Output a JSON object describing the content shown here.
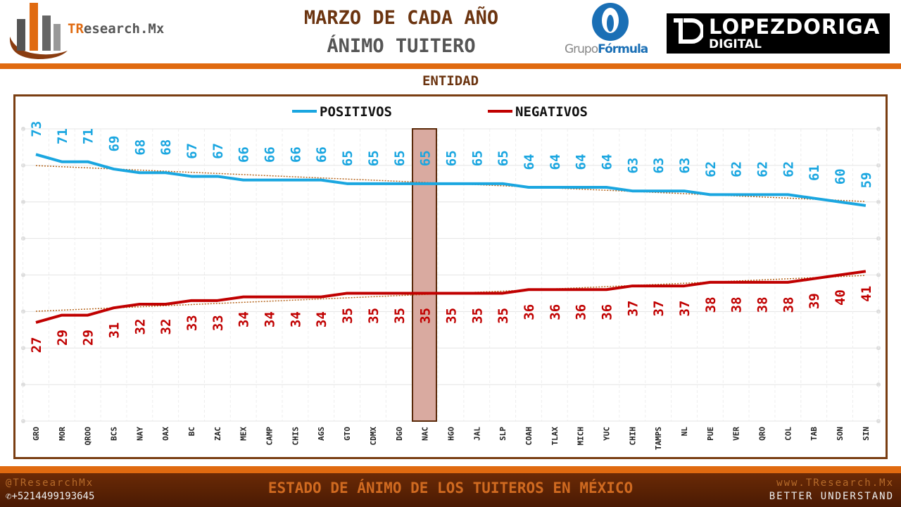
{
  "header": {
    "title": "MARZO DE CADA AÑO",
    "subtitle": "ÁNIMO TUITERO",
    "logo_tresearch_prefix": "TR",
    "logo_tresearch_rest": "esearch.Mx",
    "logo_grupo_light": "Grupo",
    "logo_grupo_bold": "Fórmula",
    "logo_lopezdoriga_main": "LOPEZDORIGA",
    "logo_lopezdoriga_sub": "DIGITAL"
  },
  "section_label": "ENTIDAD",
  "chart_data": {
    "type": "line",
    "title": "",
    "xlabel": "",
    "ylabel": "",
    "ylim": [
      0,
      80
    ],
    "grid": true,
    "legend_position": "top",
    "highlight_category": "NAC",
    "trendlines": "linear, dotted",
    "categories": [
      "GRO",
      "MOR",
      "QROO",
      "BCS",
      "NAY",
      "OAX",
      "BC",
      "ZAC",
      "MEX",
      "CAMP",
      "CHIS",
      "AGS",
      "GTO",
      "CDMX",
      "DGO",
      "NAC",
      "HGO",
      "JAL",
      "SLP",
      "COAH",
      "TLAX",
      "MICH",
      "YUC",
      "CHIH",
      "TAMPS",
      "NL",
      "PUE",
      "VER",
      "QRO",
      "COL",
      "TAB",
      "SON",
      "SIN"
    ],
    "series": [
      {
        "name": "POSITIVOS",
        "color": "#1aa6e0",
        "values": [
          73,
          71,
          71,
          69,
          68,
          68,
          67,
          67,
          66,
          66,
          66,
          66,
          65,
          65,
          65,
          65,
          65,
          65,
          65,
          64,
          64,
          64,
          64,
          63,
          63,
          63,
          62,
          62,
          62,
          62,
          61,
          60,
          59
        ]
      },
      {
        "name": "NEGATIVOS",
        "color": "#c00000",
        "values": [
          27,
          29,
          29,
          31,
          32,
          32,
          33,
          33,
          34,
          34,
          34,
          34,
          35,
          35,
          35,
          35,
          35,
          35,
          35,
          36,
          36,
          36,
          36,
          37,
          37,
          37,
          38,
          38,
          38,
          38,
          39,
          40,
          41
        ]
      }
    ]
  },
  "footer": {
    "handle": "@TResearchMx",
    "phone": "+5214499193645",
    "center": "ESTADO DE ÁNIMO DE LOS TUITEROS EN MÉXICO",
    "website": "www.TResearch.Mx",
    "tagline": "BETTER UNDERSTAND"
  }
}
